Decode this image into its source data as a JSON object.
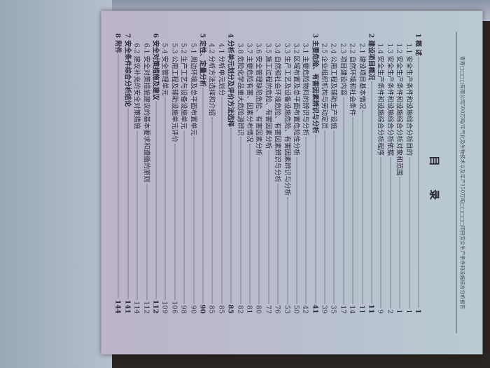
{
  "header": "青海□□□□有限公司500万吨/年气化及生物技术以及年产150万吨□□□□□项目安全生产条件和设施综合分析报告",
  "title": "目 录",
  "entries": [
    {
      "level": 1,
      "label": "1 概 述",
      "page": "1"
    },
    {
      "level": 2,
      "label": "1.1 安全生产条件和设施综合分析目的",
      "page": "1"
    },
    {
      "level": 2,
      "label": "1.2 安全生产条件和设施综合分析对象和范围",
      "page": "1"
    },
    {
      "level": 2,
      "label": "1.3 安全生产条件和设施综合分析依据",
      "page": "2"
    },
    {
      "level": 2,
      "label": "1.4 安全生产条件和设施综合分析程序",
      "page": "9"
    },
    {
      "level": 1,
      "label": "2 建设项目概况",
      "page": "11"
    },
    {
      "level": 2,
      "label": "2.1 建设项目基本情况",
      "page": "11"
    },
    {
      "level": 2,
      "label": "2.2 自然环境和社会条件",
      "page": "14"
    },
    {
      "level": 2,
      "label": "2.3 项目建设内容",
      "page": "17"
    },
    {
      "level": 2,
      "label": "2.4 公用工程及辅助生产设施",
      "page": "35"
    },
    {
      "level": 2,
      "label": "2.5 企业组织机构与劳动定员",
      "page": "39"
    },
    {
      "level": 1,
      "label": "3 主要危险、有害因素辨识与分析",
      "page": "41"
    },
    {
      "level": 2,
      "label": "3.1 主要危险物料的辨识与分析",
      "page": "42"
    },
    {
      "level": 2,
      "label": "3.2 区域布置及总平面布置危险性分析",
      "page": "50"
    },
    {
      "level": 2,
      "label": "3.3 生产工艺及设备设施危险、有害因素辨识与分析",
      "page": "53"
    },
    {
      "level": 2,
      "label": "3.4 自然和社会环境危险、有害因素辨识与分析",
      "page": "76"
    },
    {
      "level": 2,
      "label": "3.5 施工过程的危险、有害因素分析",
      "page": "77"
    },
    {
      "level": 2,
      "label": "3.6 安全管理缺陷危险、有害因素分析",
      "page": "80"
    },
    {
      "level": 2,
      "label": "3.7 主要危险有害、因素分布情况",
      "page": "81"
    },
    {
      "level": 2,
      "label": "3.8 危险化学品重大危险源辨识",
      "page": "82"
    },
    {
      "level": 1,
      "label": "4 分析单元划分及评价方法选择",
      "page": "85"
    },
    {
      "level": 2,
      "label": "4.1 分析单元划分",
      "page": "85"
    },
    {
      "level": 2,
      "label": "4.2 分析方法选择和介绍",
      "page": "85"
    },
    {
      "level": 1,
      "label": "5 定性、定量分析",
      "page": "90"
    },
    {
      "level": 2,
      "label": "5.1 周边环境及总平面布置单元",
      "page": "90"
    },
    {
      "level": 2,
      "label": "5.2 生产工艺与设备设施单元",
      "page": "98"
    },
    {
      "level": 2,
      "label": "5.3 公用工程及辅助设施单元评价",
      "page": "106"
    },
    {
      "level": 2,
      "label": "5.4 安全管理单元",
      "page": "109"
    },
    {
      "level": 1,
      "label": "6 安全对策措施及建议",
      "page": "112"
    },
    {
      "level": 2,
      "label": "6.1 安全对策措施建议的基本要求和遵循的原则",
      "page": "112"
    },
    {
      "level": 2,
      "label": "6.2 建议补充的安全对策措施",
      "page": "114"
    },
    {
      "level": 1,
      "label": "7 安全条件综合分析结论",
      "page": "141"
    },
    {
      "level": 1,
      "label": "8 附件",
      "page": "144"
    }
  ]
}
